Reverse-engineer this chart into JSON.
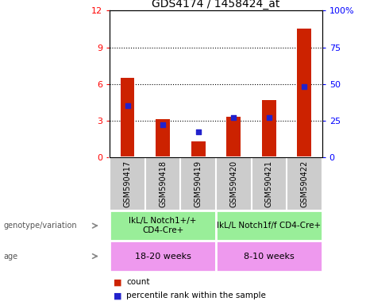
{
  "title": "GDS4174 / 1458424_at",
  "samples": [
    "GSM590417",
    "GSM590418",
    "GSM590419",
    "GSM590420",
    "GSM590421",
    "GSM590422"
  ],
  "count_values": [
    6.5,
    3.1,
    1.3,
    3.3,
    4.7,
    10.5
  ],
  "percentile_values": [
    35,
    22,
    17,
    27,
    27,
    48
  ],
  "ylim_left": [
    0,
    12
  ],
  "ylim_right": [
    0,
    100
  ],
  "yticks_left": [
    0,
    3,
    6,
    9,
    12
  ],
  "ytick_labels_left": [
    "0",
    "3",
    "6",
    "9",
    "12"
  ],
  "yticks_right": [
    0,
    25,
    50,
    75,
    100
  ],
  "ytick_labels_right": [
    "0",
    "25",
    "50",
    "75",
    "100%"
  ],
  "bar_color": "#cc2200",
  "dot_color": "#2222cc",
  "group1_genotype": "IkL/L Notch1+/+\nCD4-Cre+",
  "group2_genotype": "IkL/L Notch1f/f CD4-Cre+",
  "group1_age": "18-20 weeks",
  "group2_age": "8-10 weeks",
  "genotype_bg": "#99ee99",
  "age_bg": "#ee99ee",
  "tick_bg": "#cccccc",
  "legend_count": "count",
  "legend_percentile": "percentile rank within the sample",
  "left_label_genotype": "genotype/variation",
  "left_label_age": "age"
}
